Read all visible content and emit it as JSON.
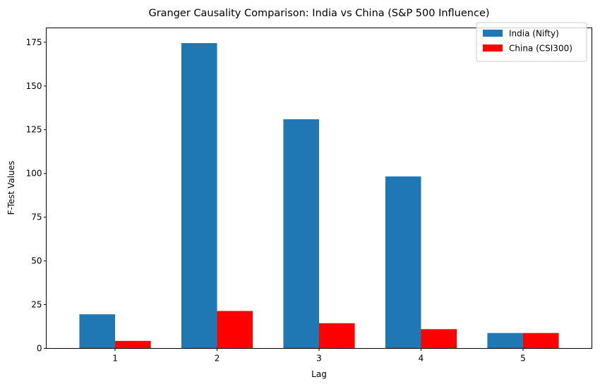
{
  "chart_data": {
    "type": "bar",
    "title": "Granger Causality Comparison: India vs China (S&P 500 Influence)",
    "xlabel": "Lag",
    "ylabel": "F-Test Values",
    "categories": [
      "1",
      "2",
      "3",
      "4",
      "5"
    ],
    "series": [
      {
        "name": "India (Nifty)",
        "color": "#1f77b4",
        "values": [
          19.5,
          174.5,
          131.0,
          98.3,
          8.8
        ]
      },
      {
        "name": "China (CSI300)",
        "color": "#ff0000",
        "values": [
          4.3,
          21.4,
          14.4,
          11.0,
          8.8
        ]
      }
    ],
    "ylim": [
      0,
      183.2
    ],
    "yticks": [
      "0",
      "25",
      "50",
      "75",
      "100",
      "125",
      "150",
      "175"
    ],
    "grid": false,
    "legend_position": "top-right"
  }
}
